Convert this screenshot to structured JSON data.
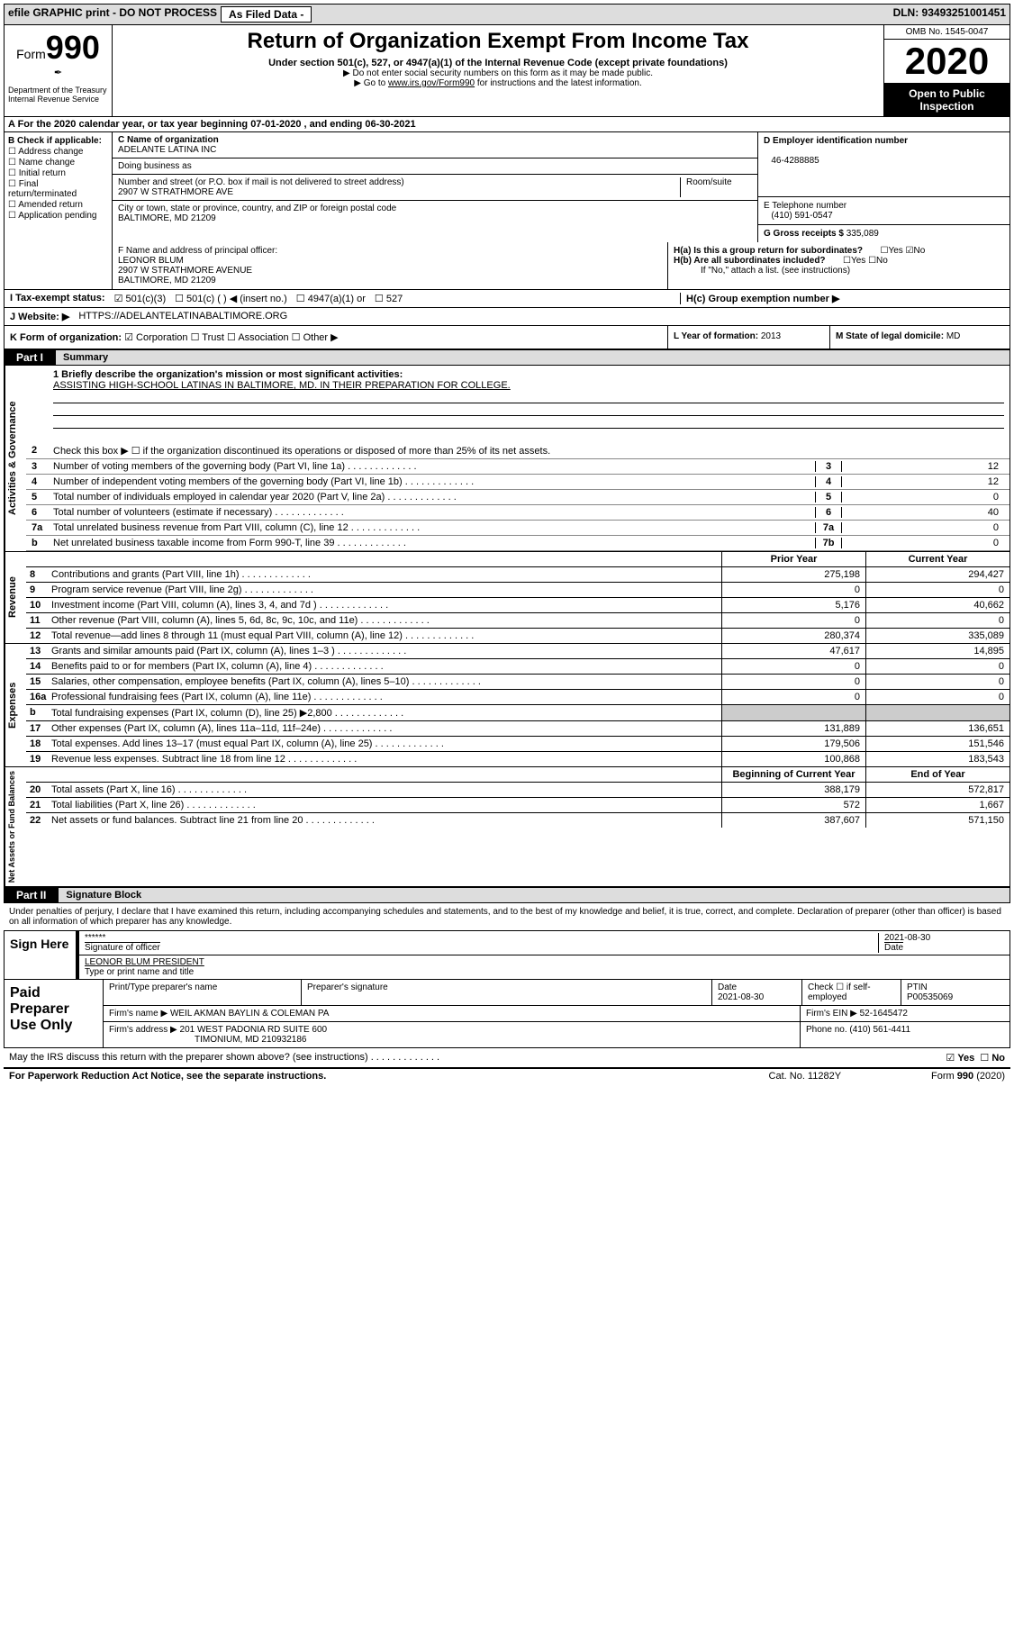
{
  "topbar": {
    "efile": "efile GRAPHIC print - DO NOT PROCESS",
    "asfiled": "As Filed Data -",
    "dln": "DLN: 93493251001451"
  },
  "header": {
    "form": "Form",
    "num": "990",
    "dept": "Department of the Treasury\nInternal Revenue Service",
    "title": "Return of Organization Exempt From Income Tax",
    "sub": "Under section 501(c), 527, or 4947(a)(1) of the Internal Revenue Code (except private foundations)",
    "note1": "▶ Do not enter social security numbers on this form as it may be made public.",
    "note2": "▶ Go to www.irs.gov/Form990 for instructions and the latest information.",
    "omb": "OMB No. 1545-0047",
    "year": "2020",
    "inspect": "Open to Public Inspection"
  },
  "rowA": "A   For the 2020 calendar year, or tax year beginning 07-01-2020   , and ending 06-30-2021",
  "B": {
    "label": "B Check if applicable:",
    "items": [
      "Address change",
      "Name change",
      "Initial return",
      "Final return/terminated",
      "Amended return",
      "Application pending"
    ]
  },
  "C": {
    "nameLbl": "C Name of organization",
    "name": "ADELANTE LATINA INC",
    "dbaLbl": "Doing business as",
    "dba": "",
    "addrLbl": "Number and street (or P.O. box if mail is not delivered to street address)",
    "roomLbl": "Room/suite",
    "addr": "2907 W STRATHMORE AVE",
    "cityLbl": "City or town, state or province, country, and ZIP or foreign postal code",
    "city": "BALTIMORE, MD  21209"
  },
  "D": {
    "lbl": "D Employer identification number",
    "val": "46-4288885"
  },
  "E": {
    "lbl": "E Telephone number",
    "val": "(410) 591-0547"
  },
  "G": {
    "lbl": "G Gross receipts $",
    "val": "335,089"
  },
  "F": {
    "lbl": "F  Name and address of principal officer:",
    "name": "LEONOR BLUM",
    "addr1": "2907 W STRATHMORE AVENUE",
    "addr2": "BALTIMORE, MD  21209"
  },
  "H": {
    "a": "H(a)  Is this a group return for subordinates?",
    "aYes": "Yes",
    "aNo": "No",
    "b": "H(b)  Are all subordinates included?",
    "bNote": "If \"No,\" attach a list. (see instructions)",
    "c": "H(c)  Group exemption number ▶"
  },
  "I": {
    "lbl": "I   Tax-exempt status:",
    "opts": [
      "501(c)(3)",
      "501(c) (   ) ◀ (insert no.)",
      "4947(a)(1) or",
      "527"
    ]
  },
  "J": {
    "lbl": "J   Website: ▶",
    "val": "HTTPS://ADELANTELATINABALTIMORE.ORG"
  },
  "K": {
    "lbl": "K Form of organization:",
    "opts": [
      "Corporation",
      "Trust",
      "Association",
      "Other ▶"
    ]
  },
  "L": {
    "lbl": "L Year of formation:",
    "val": "2013"
  },
  "M": {
    "lbl": "M State of legal domicile:",
    "val": "MD"
  },
  "part1": {
    "tag": "Part I",
    "title": "Summary"
  },
  "mission": {
    "lbl": "1 Briefly describe the organization's mission or most significant activities:",
    "txt": "ASSISTING HIGH-SCHOOL LATINAS IN BALTIMORE, MD. IN THEIR PREPARATION FOR COLLEGE."
  },
  "gov": {
    "l2": "Check this box ▶ ☐  if the organization discontinued its operations or disposed of more than 25% of its net assets.",
    "rows": [
      {
        "n": "3",
        "t": "Number of voting members of the governing body (Part VI, line 1a)",
        "c": "3",
        "v": "12"
      },
      {
        "n": "4",
        "t": "Number of independent voting members of the governing body (Part VI, line 1b)",
        "c": "4",
        "v": "12"
      },
      {
        "n": "5",
        "t": "Total number of individuals employed in calendar year 2020 (Part V, line 2a)",
        "c": "5",
        "v": "0"
      },
      {
        "n": "6",
        "t": "Total number of volunteers (estimate if necessary)",
        "c": "6",
        "v": "40"
      },
      {
        "n": "7a",
        "t": "Total unrelated business revenue from Part VIII, column (C), line 12",
        "c": "7a",
        "v": "0"
      },
      {
        "n": "b",
        "t": "Net unrelated business taxable income from Form 990-T, line 39",
        "c": "7b",
        "v": "0"
      }
    ]
  },
  "rev": {
    "hdr1": "Prior Year",
    "hdr2": "Current Year",
    "rows": [
      {
        "n": "8",
        "t": "Contributions and grants (Part VIII, line 1h)",
        "p": "275,198",
        "c": "294,427"
      },
      {
        "n": "9",
        "t": "Program service revenue (Part VIII, line 2g)",
        "p": "0",
        "c": "0"
      },
      {
        "n": "10",
        "t": "Investment income (Part VIII, column (A), lines 3, 4, and 7d )",
        "p": "5,176",
        "c": "40,662"
      },
      {
        "n": "11",
        "t": "Other revenue (Part VIII, column (A), lines 5, 6d, 8c, 9c, 10c, and 11e)",
        "p": "0",
        "c": "0"
      },
      {
        "n": "12",
        "t": "Total revenue—add lines 8 through 11 (must equal Part VIII, column (A), line 12)",
        "p": "280,374",
        "c": "335,089"
      }
    ]
  },
  "exp": {
    "rows": [
      {
        "n": "13",
        "t": "Grants and similar amounts paid (Part IX, column (A), lines 1–3 )",
        "p": "47,617",
        "c": "14,895"
      },
      {
        "n": "14",
        "t": "Benefits paid to or for members (Part IX, column (A), line 4)",
        "p": "0",
        "c": "0"
      },
      {
        "n": "15",
        "t": "Salaries, other compensation, employee benefits (Part IX, column (A), lines 5–10)",
        "p": "0",
        "c": "0"
      },
      {
        "n": "16a",
        "t": "Professional fundraising fees (Part IX, column (A), line 11e)",
        "p": "0",
        "c": "0"
      },
      {
        "n": "b",
        "t": "Total fundraising expenses (Part IX, column (D), line 25) ▶2,800",
        "p": "",
        "c": "",
        "gray": true
      },
      {
        "n": "17",
        "t": "Other expenses (Part IX, column (A), lines 11a–11d, 11f–24e)",
        "p": "131,889",
        "c": "136,651"
      },
      {
        "n": "18",
        "t": "Total expenses. Add lines 13–17 (must equal Part IX, column (A), line 25)",
        "p": "179,506",
        "c": "151,546"
      },
      {
        "n": "19",
        "t": "Revenue less expenses. Subtract line 18 from line 12",
        "p": "100,868",
        "c": "183,543"
      }
    ]
  },
  "net": {
    "hdr1": "Beginning of Current Year",
    "hdr2": "End of Year",
    "rows": [
      {
        "n": "20",
        "t": "Total assets (Part X, line 16)",
        "p": "388,179",
        "c": "572,817"
      },
      {
        "n": "21",
        "t": "Total liabilities (Part X, line 26)",
        "p": "572",
        "c": "1,667"
      },
      {
        "n": "22",
        "t": "Net assets or fund balances. Subtract line 21 from line 20",
        "p": "387,607",
        "c": "571,150"
      }
    ]
  },
  "part2": {
    "tag": "Part II",
    "title": "Signature Block"
  },
  "sig": {
    "intro": "Under penalties of perjury, I declare that I have examined this return, including accompanying schedules and statements, and to the best of my knowledge and belief, it is true, correct, and complete. Declaration of preparer (other than officer) is based on all information of which preparer has any knowledge.",
    "lbl": "Sign Here",
    "stars": "******",
    "sigOf": "Signature of officer",
    "date": "2021-08-30",
    "dateLbl": "Date",
    "name": "LEONOR BLUM PRESIDENT",
    "nameLbl": "Type or print name and title"
  },
  "prep": {
    "lbl": "Paid Preparer Use Only",
    "r1": {
      "a": "Print/Type preparer's name",
      "b": "Preparer's signature",
      "c": "Date",
      "cv": "2021-08-30",
      "d": "Check ☐ if self-employed",
      "e": "PTIN",
      "ev": "P00535069"
    },
    "r2": {
      "a": "Firm's name    ▶ WEIL AKMAN BAYLIN & COLEMAN PA",
      "b": "Firm's EIN ▶ 52-1645472"
    },
    "r3": {
      "a": "Firm's address ▶ 201 WEST PADONIA RD SUITE 600",
      "b": "Phone no. (410) 561-4411"
    },
    "r3b": "TIMONIUM, MD 210932186"
  },
  "discuss": "May the IRS discuss this return with the preparer shown above? (see instructions)",
  "footer": {
    "l": "For Paperwork Reduction Act Notice, see the separate instructions.",
    "m": "Cat. No. 11282Y",
    "r": "Form 990 (2020)"
  },
  "labels": {
    "vGov": "Activities & Governance",
    "vRev": "Revenue",
    "vExp": "Expenses",
    "vNet": "Net Assets or Fund Balances",
    "yes": "Yes",
    "no": "No"
  }
}
